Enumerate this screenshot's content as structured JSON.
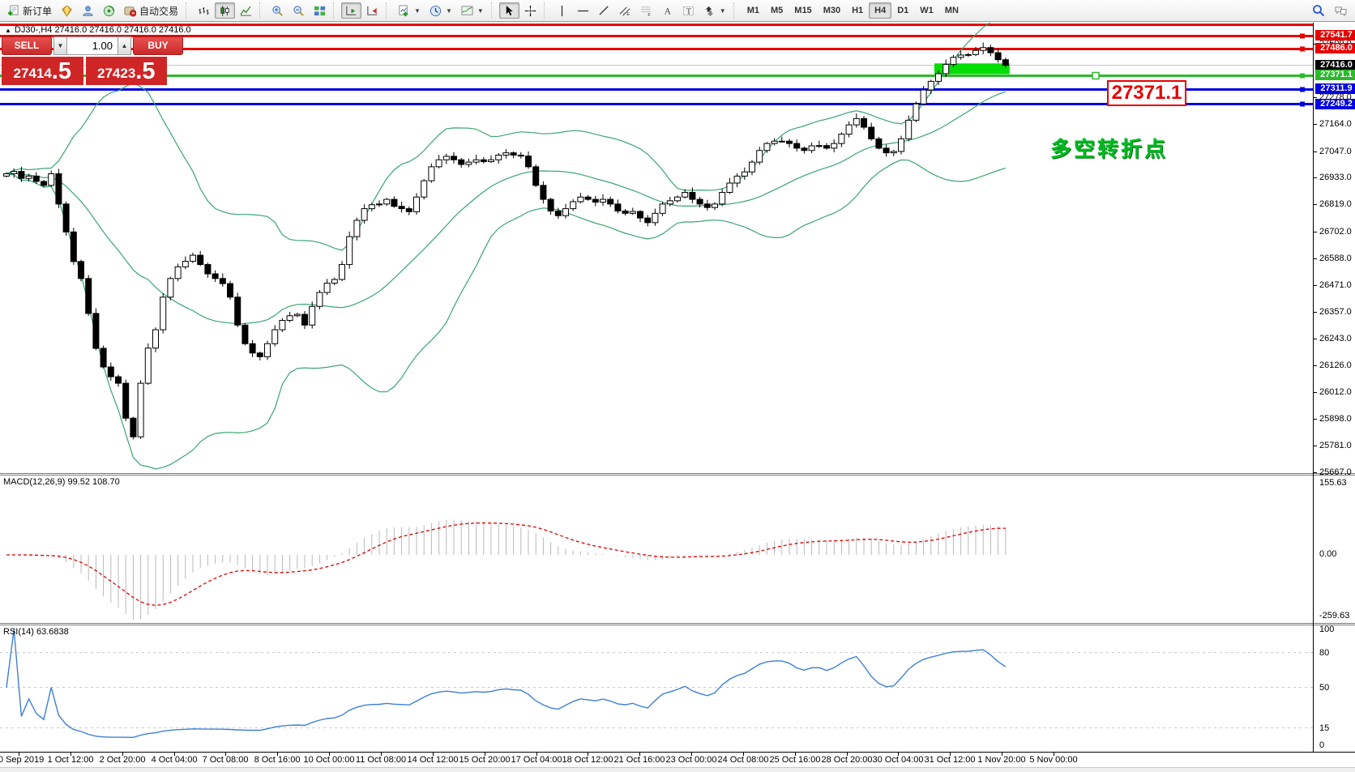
{
  "toolbar": {
    "new_order_label": "新订单",
    "autotrading_label": "自动交易",
    "timeframes": [
      "M1",
      "M5",
      "M15",
      "M30",
      "H1",
      "H4",
      "D1",
      "W1",
      "MN"
    ],
    "active_timeframe": "H4"
  },
  "trade_panel": {
    "sell_label": "SELL",
    "buy_label": "BUY",
    "volume": "1.00",
    "sell_price_main": "27414",
    "sell_price_frac": ".5",
    "buy_price_main": "27423",
    "buy_price_frac": ".5"
  },
  "chart": {
    "title": "DJ30-,H4  27416.0 27416.0 27416.0 27416.0",
    "annotation": "多空转折点",
    "price_box": "27371.1"
  },
  "chart_data": {
    "type": "candlestick",
    "symbol": "DJ30-",
    "timeframe": "H4",
    "title": "DJ30-,H4 27416.0 27416.0 27416.0 27416.0",
    "closes": [
      26950,
      26960,
      26930,
      26940,
      26917,
      26900,
      26950,
      26820,
      26700,
      26573,
      26500,
      26350,
      26200,
      26120,
      26078,
      26050,
      25900,
      25820,
      26050,
      26201,
      26280,
      26420,
      26500,
      26550,
      26574,
      26600,
      26560,
      26520,
      26500,
      26478,
      26420,
      26300,
      26220,
      26180,
      26164,
      26220,
      26280,
      26320,
      26340,
      26346,
      26300,
      26380,
      26440,
      26480,
      26496,
      26560,
      26680,
      26750,
      26800,
      26817,
      26820,
      26840,
      26810,
      26800,
      26787,
      26850,
      26920,
      26980,
      27010,
      27025,
      27010,
      26990,
      27000,
      27010,
      27002,
      27010,
      27030,
      27040,
      27030,
      27026,
      26980,
      26900,
      26840,
      26790,
      26770,
      26800,
      26830,
      26850,
      26840,
      26828,
      26840,
      26820,
      26790,
      26780,
      26788,
      26760,
      26740,
      26780,
      26820,
      26834,
      26850,
      26870,
      26840,
      26820,
      26805,
      26820,
      26870,
      26910,
      26940,
      26958,
      27000,
      27050,
      27080,
      27090,
      27090,
      27080,
      27060,
      27050,
      27070,
      27071,
      27060,
      27080,
      27120,
      27160,
      27187,
      27150,
      27100,
      27060,
      27040,
      27046,
      27100,
      27180,
      27250,
      27310,
      27347,
      27380,
      27420,
      27450,
      27460,
      27462,
      27480,
      27492,
      27470,
      27440,
      27416
    ],
    "bollinger": {
      "period": 20,
      "deviation": 2,
      "color": "#3aa571"
    },
    "levels": [
      {
        "price": 27590.0,
        "color": "#e80000",
        "width": 3,
        "tag": null
      },
      {
        "price": 27541.7,
        "color": "#e80000",
        "width": 3,
        "tag": "27541.7",
        "tag_bg": "#e80000"
      },
      {
        "price": 27486.0,
        "color": "#e80000",
        "width": 3,
        "tag": "27486.0",
        "tag_bg": "#e80000"
      },
      {
        "price": 27416.0,
        "color": "#c0c0c0",
        "width": 1,
        "tag": "27416.0",
        "tag_bg": "#000000"
      },
      {
        "price": 27371.1,
        "color": "#2db92d",
        "width": 3,
        "tag": "27371.1",
        "tag_bg": "#2db92d"
      },
      {
        "price": 27311.9,
        "color": "#0000e0",
        "width": 3,
        "tag": "27311.9",
        "tag_bg": "#0000e0"
      },
      {
        "price": 27249.2,
        "color": "#0000e0",
        "width": 3,
        "tag": "27249.2",
        "tag_bg": "#0000e0"
      }
    ],
    "highlight_rect": {
      "bar_from": 125,
      "bar_to": 134,
      "price_top": 27424,
      "price_bottom": 27378,
      "color": "#00dd00"
    },
    "y_ticks": [
      "27509.0",
      "27278.0",
      "27164.0",
      "27047.0",
      "26933.0",
      "26819.0",
      "26702.0",
      "26588.0",
      "26471.0",
      "26357.0",
      "26243.0",
      "26126.0",
      "26012.0",
      "25898.0",
      "25781.0",
      "25667.0"
    ],
    "x_labels": [
      "30 Sep 2019",
      "1 Oct 12:00",
      "2 Oct 20:00",
      "4 Oct 04:00",
      "7 Oct 08:00",
      "8 Oct 16:00",
      "10 Oct 00:00",
      "11 Oct 08:00",
      "14 Oct 12:00",
      "15 Oct 20:00",
      "17 Oct 04:00",
      "18 Oct 12:00",
      "21 Oct 16:00",
      "23 Oct 00:00",
      "24 Oct 08:00",
      "25 Oct 16:00",
      "28 Oct 20:00",
      "30 Oct 04:00",
      "31 Oct 12:00",
      "1 Nov 20:00",
      "5 Nov 00:00"
    ],
    "macd": {
      "label_full": "MACD(12,26,9) 99.52 108.70",
      "params": [
        12,
        26,
        9
      ],
      "main_value": 99.52,
      "signal_value": 108.7,
      "axis": [
        "155.63",
        "0.00",
        "-259.63"
      ],
      "hist_color": "#b8b8b8",
      "signal_color": "#e00000"
    },
    "rsi": {
      "label_full": "RSI(14) 63.6838",
      "period": 14,
      "value": 63.6838,
      "axis_labels": [
        100,
        80,
        50,
        15,
        0
      ],
      "dashed_levels": [
        80,
        50,
        15
      ],
      "line_color": "#3f7fd4"
    }
  }
}
